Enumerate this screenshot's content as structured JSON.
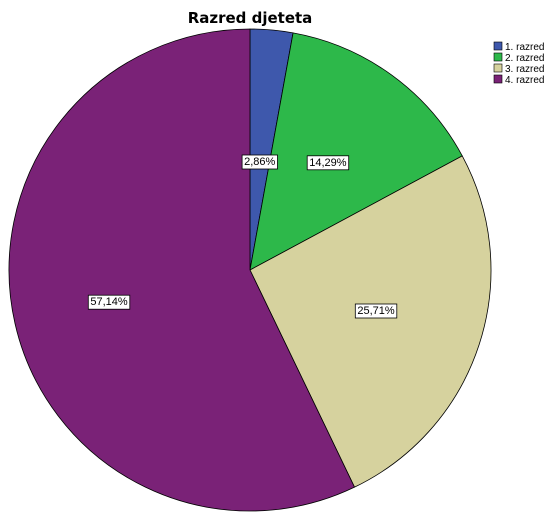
{
  "chart_data": {
    "type": "pie",
    "title": "Razred djeteta",
    "slices": [
      {
        "label": "1. razred",
        "value": 2.86,
        "data_label": "2,86%",
        "color": "#3e58ac"
      },
      {
        "label": "2. razred",
        "value": 14.29,
        "data_label": "14,29%",
        "color": "#2db84a"
      },
      {
        "label": "3. razred",
        "value": 25.71,
        "data_label": "25,71%",
        "color": "#d6d29e"
      },
      {
        "label": "4. razred",
        "value": 57.14,
        "data_label": "57,14%",
        "color": "#7a2277"
      }
    ],
    "legend_position": "top-right",
    "start_angle": "12 o'clock",
    "direction": "clockwise"
  }
}
